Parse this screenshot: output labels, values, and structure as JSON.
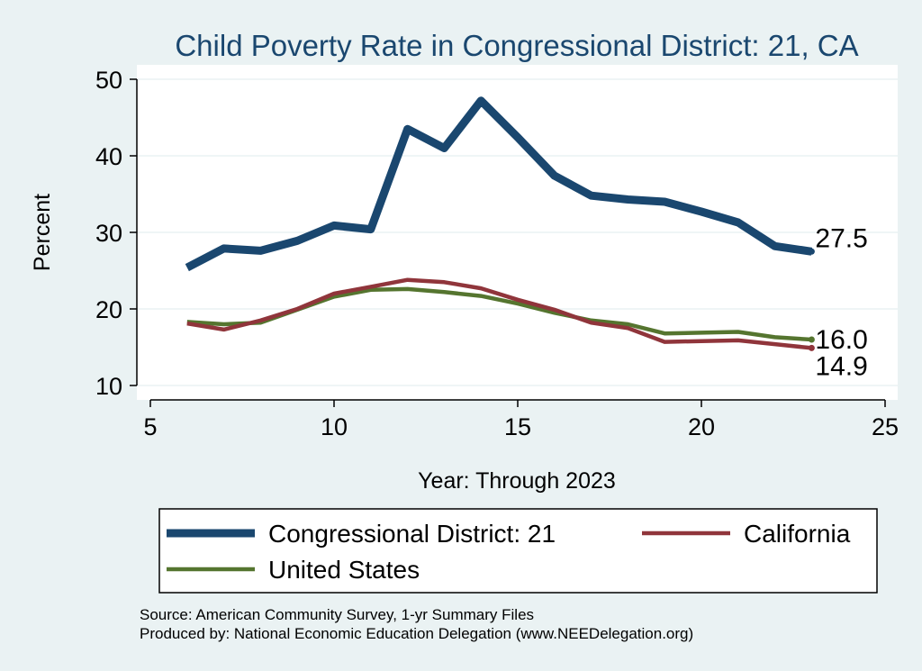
{
  "chart_data": {
    "type": "line",
    "title": "Child Poverty Rate in Congressional District:  21, CA",
    "xlabel": "Year: Through 2023",
    "ylabel": "Percent",
    "xlim": [
      5,
      25
    ],
    "ylim": [
      10,
      50
    ],
    "x_ticks": [
      5,
      10,
      15,
      20,
      25
    ],
    "y_ticks": [
      10,
      20,
      30,
      40,
      50
    ],
    "x_tick_labels": [
      "5",
      "10",
      "15",
      "20",
      "25"
    ],
    "y_tick_labels": [
      "10",
      "20",
      "30",
      "40",
      "50"
    ],
    "grid": true,
    "legend_position": "bottom",
    "series": [
      {
        "name": "Congressional District:  21",
        "color": "#1a476f",
        "x": [
          6,
          7,
          8,
          9,
          10,
          11,
          12,
          13,
          14,
          15,
          16,
          17,
          18,
          19,
          20,
          21,
          22,
          23
        ],
        "values": [
          25.4,
          27.9,
          27.6,
          28.9,
          30.9,
          30.4,
          43.5,
          41.0,
          47.2,
          42.4,
          37.4,
          34.8,
          34.3,
          34.0,
          32.7,
          31.3,
          28.2,
          27.5
        ],
        "end_label": "27.5"
      },
      {
        "name": "California",
        "color": "#90353b",
        "x": [
          6,
          7,
          8,
          9,
          10,
          11,
          12,
          13,
          14,
          15,
          16,
          17,
          18,
          19,
          20,
          21,
          22,
          23
        ],
        "values": [
          18.1,
          17.3,
          18.5,
          20.0,
          22.0,
          22.9,
          23.8,
          23.5,
          22.7,
          21.2,
          19.9,
          18.2,
          17.5,
          15.7,
          15.8,
          15.9,
          15.4,
          14.9
        ],
        "end_label": "14.9"
      },
      {
        "name": "United States",
        "color": "#55752f",
        "x": [
          6,
          7,
          8,
          9,
          10,
          11,
          12,
          13,
          14,
          15,
          16,
          17,
          18,
          19,
          20,
          21,
          22,
          23
        ],
        "values": [
          18.3,
          18.0,
          18.2,
          19.9,
          21.6,
          22.5,
          22.6,
          22.2,
          21.7,
          20.7,
          19.5,
          18.5,
          18.0,
          16.8,
          16.9,
          17.0,
          16.3,
          16.0
        ],
        "end_label": "16.0"
      }
    ],
    "legend_order": [
      0,
      1,
      2
    ],
    "notes": [
      "Source: American Community Survey, 1-yr Summary Files",
      "Produced by: National Economic Education Delegation (www.NEEDelegation.org)"
    ]
  }
}
